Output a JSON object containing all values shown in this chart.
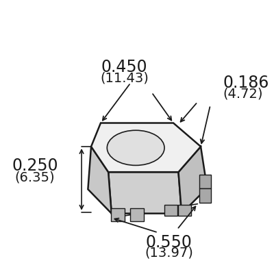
{
  "bg_color": "#ffffff",
  "line_color": "#1a1a1a",
  "text_color": "#1a1a1a",
  "fig_size": [
    4.0,
    4.0
  ],
  "dpi": 100,
  "annotations": {
    "top_width_label": "0.450",
    "top_width_sub": "(11.43)",
    "right_top_label": "0.186",
    "right_top_sub": "(4.72)",
    "left_height_label": "0.250",
    "left_height_sub": "(6.35)",
    "bottom_width_label": "0.550",
    "bottom_width_sub": "(13.97)"
  }
}
